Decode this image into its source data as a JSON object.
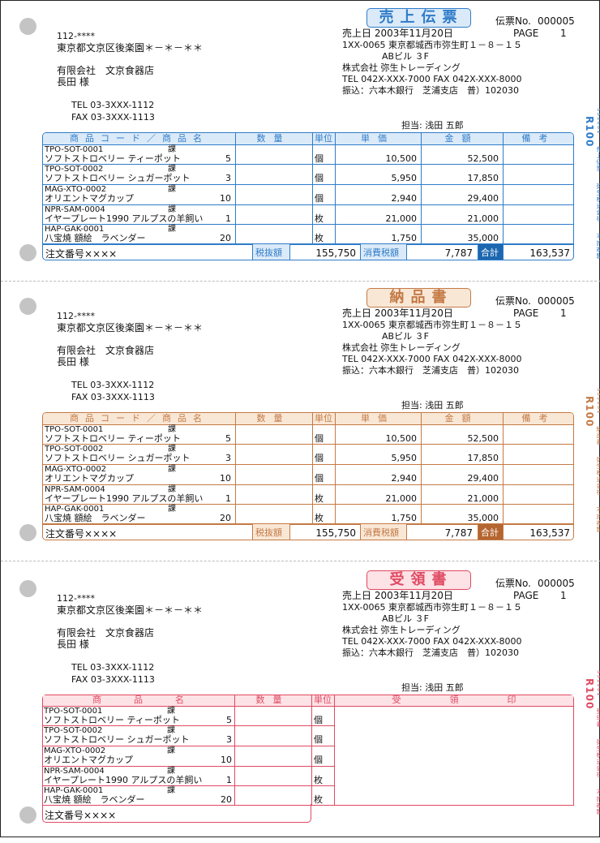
{
  "items": [
    {
      "code": "TPO-SOT-0001",
      "tax": "課",
      "name": "ソフトストロベリー ティーポット",
      "qty": "5",
      "unit": "個",
      "price": "10,500",
      "amount": "52,500"
    },
    {
      "code": "TPO-SOT-0002",
      "tax": "課",
      "name": "ソフトストロベリー シュガーポット",
      "qty": "3",
      "unit": "個",
      "price": "5,950",
      "amount": "17,850"
    },
    {
      "code": "MAG-XTO-0002",
      "tax": "課",
      "name": "オリエントマグカップ",
      "qty": "10",
      "unit": "個",
      "price": "2,940",
      "amount": "29,400"
    },
    {
      "code": "NPR-SAM-0004",
      "tax": "課",
      "name": "イヤープレート1990 アルプスの羊飼い",
      "qty": "1",
      "unit": "枚",
      "price": "21,000",
      "amount": "21,000"
    },
    {
      "code": "HAP-GAK-0001",
      "tax": "課",
      "name": "八宝焼 額絵　ラベンダー",
      "qty": "20",
      "unit": "枚",
      "price": "1,750",
      "amount": "35,000"
    }
  ],
  "customer": {
    "postal": "112-****",
    "address": "東京都文京区後楽園＊－＊－＊＊",
    "company": "有限会社　文京食器店",
    "person": "長田 様",
    "tel": "TEL 03-3XXX-1112",
    "fax": "FAX 03-3XXX-1113"
  },
  "sender": {
    "sale_date": "売上日 2003年11月20日",
    "address1": "1XX-0065 東京都城西市弥生町１－８－１５",
    "address2": "ABビル ３F",
    "company": "株式会社 弥生トレーディング",
    "tel_fax": "TEL 042X-XXX-7000 FAX 042X-XXX-8000",
    "bank": "振込：六本木銀行　芝浦支店　普）102030",
    "staff": "担当: 浅田 五郎"
  },
  "slip": {
    "no_label": "伝票No.",
    "no": "000005",
    "page_label": "PAGE",
    "page": "1"
  },
  "order_no": "注文番号××××",
  "totals": {
    "subtotal_label": "税抜額",
    "subtotal": "155,750",
    "tax_label": "消費税額",
    "tax": "7,787",
    "total_label": "合計",
    "total": "163,537"
  },
  "headers_full": [
    "商品コード／商品名",
    "数量",
    "単位",
    "単価",
    "金額",
    "備考"
  ],
  "headers_receipt": [
    "商品名",
    "数量",
    "単位",
    "受領印"
  ],
  "forms": [
    {
      "title": "売上伝票",
      "color": "#2f7cc9",
      "bg": "#dbeaf8",
      "dark": "#1c67b0",
      "side": [
        "331001",
        "売上伝票",
        "弥生株式会社",
        "不許複製"
      ],
      "side_code": "R100"
    },
    {
      "title": "納品書",
      "color": "#c47a45",
      "bg": "#f9e7d6",
      "dark": "#b5652f",
      "side": [
        "331001",
        "納品書",
        "弥生株式会社",
        "不許複製"
      ],
      "side_code": "R100"
    },
    {
      "title": "受領書",
      "color": "#e04a62",
      "bg": "#fde2e6",
      "dark": "#d43a55",
      "side": [
        "331001",
        "受領書",
        "弥生株式会社",
        "不許複製"
      ],
      "side_code": "R100"
    }
  ]
}
